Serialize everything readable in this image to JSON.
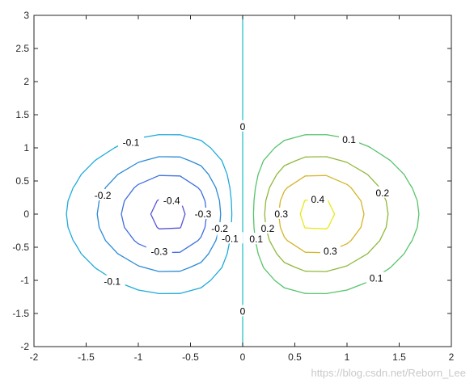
{
  "chart_data": {
    "type": "contour",
    "function": "z = x * exp(-x^2 - y^2)",
    "xlim": [
      -2,
      2
    ],
    "ylim": [
      -2,
      3
    ],
    "x_ticks": [
      "-2",
      "-1.5",
      "-1",
      "-0.5",
      "0",
      "0.5",
      "1",
      "1.5",
      "2"
    ],
    "y_ticks": [
      "-2",
      "-1.5",
      "-1",
      "-0.5",
      "0",
      "0.5",
      "1",
      "1.5",
      "2",
      "2.5",
      "3"
    ],
    "levels": [
      -0.4,
      -0.3,
      -0.2,
      -0.1,
      0,
      0.1,
      0.2,
      0.3,
      0.4
    ],
    "level_colors": {
      "-0.4": "#5454d6",
      "-0.3": "#3e6fe0",
      "-0.2": "#2a8ad6",
      "-0.1": "#1eaadc",
      "0": "#26c2c2",
      "0.1": "#56c46a",
      "0.2": "#8fb83c",
      "0.3": "#d4b42a",
      "0.4": "#e8e81a"
    },
    "contour_labels": [
      {
        "text": "-0.1",
        "x": -1.07,
        "y": 1.08
      },
      {
        "text": "-0.1",
        "x": -1.25,
        "y": -1.02
      },
      {
        "text": "-0.1",
        "x": -0.12,
        "y": -0.37
      },
      {
        "text": "-0.2",
        "x": -1.34,
        "y": 0.28
      },
      {
        "text": "-0.2",
        "x": -0.22,
        "y": -0.22
      },
      {
        "text": "-0.3",
        "x": -0.38,
        "y": 0.0
      },
      {
        "text": "-0.3",
        "x": -0.8,
        "y": -0.57
      },
      {
        "text": "-0.4",
        "x": -0.68,
        "y": 0.2
      },
      {
        "text": "0",
        "x": 0.0,
        "y": 1.32
      },
      {
        "text": "0",
        "x": 0.0,
        "y": -1.47
      },
      {
        "text": "0.1",
        "x": 1.02,
        "y": 1.12
      },
      {
        "text": "0.1",
        "x": 1.28,
        "y": -0.97
      },
      {
        "text": "0.1",
        "x": 0.13,
        "y": -0.38
      },
      {
        "text": "0.2",
        "x": 1.34,
        "y": 0.32
      },
      {
        "text": "0.2",
        "x": 0.24,
        "y": -0.22
      },
      {
        "text": "0.3",
        "x": 0.37,
        "y": 0.0
      },
      {
        "text": "0.3",
        "x": 0.84,
        "y": -0.56
      },
      {
        "text": "0.4",
        "x": 0.72,
        "y": 0.22
      }
    ]
  },
  "watermark": "https://blog.csdn.net/Reborn_Lee"
}
